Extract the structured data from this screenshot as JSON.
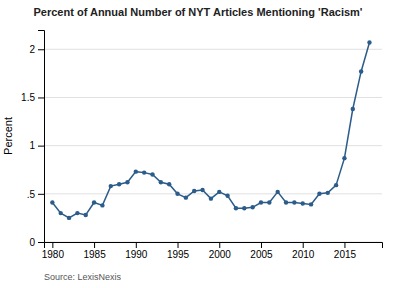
{
  "chart_data": {
    "type": "line",
    "title": "Percent of Annual Number of NYT Articles Mentioning 'Racism'",
    "ylabel": "Percent",
    "annotations": [
      "Source: LexisNexis"
    ],
    "x": [
      1980,
      1981,
      1982,
      1983,
      1984,
      1985,
      1986,
      1987,
      1988,
      1989,
      1990,
      1991,
      1992,
      1993,
      1994,
      1995,
      1996,
      1997,
      1998,
      1999,
      2000,
      2001,
      2002,
      2003,
      2004,
      2005,
      2006,
      2007,
      2008,
      2009,
      2010,
      2011,
      2012,
      2013,
      2014,
      2015,
      2016,
      2017,
      2018
    ],
    "values": [
      0.41,
      0.3,
      0.25,
      0.3,
      0.28,
      0.41,
      0.38,
      0.58,
      0.6,
      0.62,
      0.73,
      0.72,
      0.7,
      0.62,
      0.6,
      0.5,
      0.46,
      0.53,
      0.54,
      0.45,
      0.52,
      0.48,
      0.35,
      0.35,
      0.36,
      0.41,
      0.41,
      0.52,
      0.41,
      0.41,
      0.4,
      0.39,
      0.5,
      0.51,
      0.59,
      0.87,
      1.38,
      1.77,
      2.07
    ],
    "color": "#2b5c8a",
    "marker": "circle",
    "xlim": [
      1979,
      2019.5
    ],
    "ylim": [
      0,
      2.2
    ],
    "xticks": [
      1980,
      1985,
      1990,
      1995,
      2000,
      2005,
      2010,
      2015
    ],
    "yticks": [
      0,
      {
        "value": 0.5,
        "label": ".5"
      },
      1,
      1.5,
      2
    ],
    "grid": "y"
  }
}
